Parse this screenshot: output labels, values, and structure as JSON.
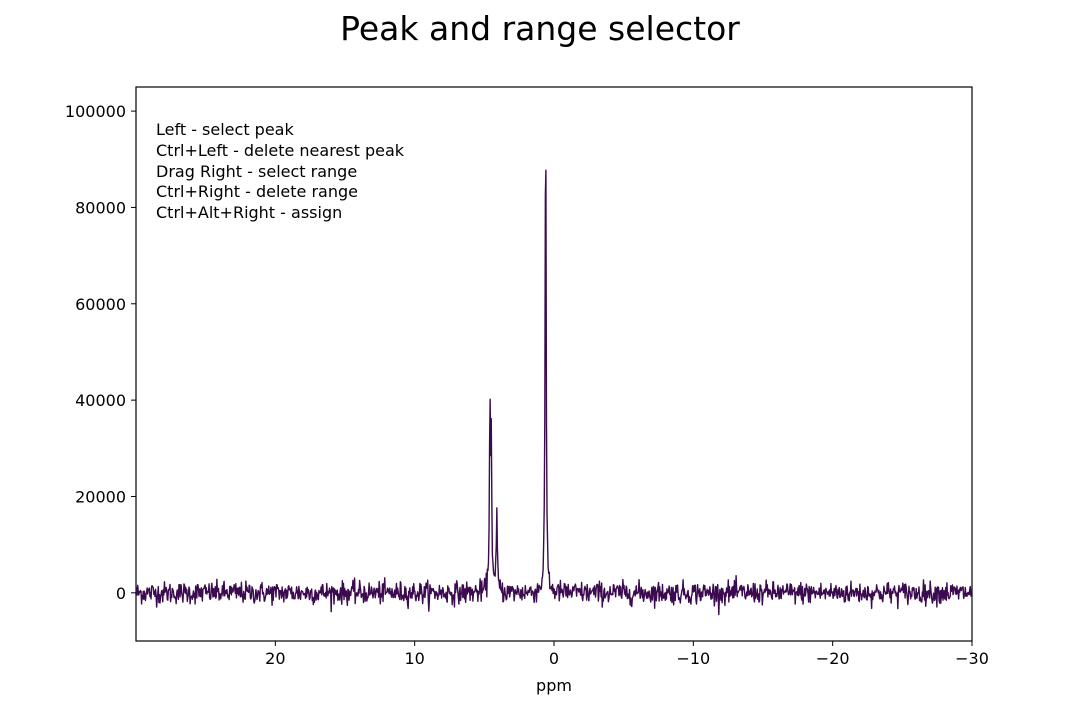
{
  "chart_data": {
    "type": "line",
    "title": "Peak and range selector",
    "xlabel": "ppm",
    "ylabel": "",
    "xlim": [
      30,
      -30
    ],
    "ylim": [
      -10000,
      105000
    ],
    "x_inverted": true,
    "grid": false,
    "legend": "none",
    "xticks": [
      20,
      10,
      0,
      -10,
      -20,
      -30
    ],
    "xtick_labels": [
      "20",
      "10",
      "0",
      "−10",
      "−20",
      "−30"
    ],
    "yticks": [
      0,
      20000,
      40000,
      60000,
      80000,
      100000
    ],
    "ytick_labels": [
      "0",
      "20000",
      "40000",
      "60000",
      "80000",
      "100000"
    ],
    "series": [
      {
        "color": "#3b0a4f",
        "baseline": 0,
        "noise_amplitude": 1500,
        "peaks": [
          {
            "x": 4.6,
            "y": 36500
          },
          {
            "x": 4.5,
            "y": 29000
          },
          {
            "x": 4.1,
            "y": 16000
          },
          {
            "x": 0.6,
            "y": 100000
          }
        ]
      }
    ],
    "annotations": [
      "Left - select peak",
      "Ctrl+Left - delete nearest peak",
      "Drag Right - select range",
      "Ctrl+Right - delete range",
      "Ctrl+Alt+Right - assign"
    ]
  }
}
